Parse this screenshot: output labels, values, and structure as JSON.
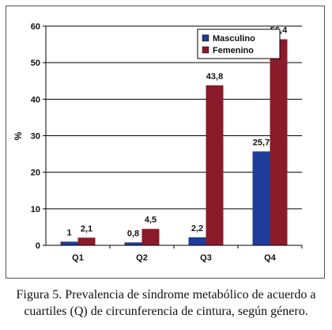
{
  "chart_data": {
    "type": "bar",
    "categories": [
      "Q1",
      "Q2",
      "Q3",
      "Q4"
    ],
    "series": [
      {
        "name": "Masculino",
        "values": [
          1,
          0.8,
          2.2,
          25.7
        ],
        "labels": [
          "1",
          "0,8",
          "2,2",
          "25,7"
        ],
        "color": "#1f3c9a"
      },
      {
        "name": "Femenino",
        "values": [
          2.1,
          4.5,
          43.8,
          56.4
        ],
        "labels": [
          "2,1",
          "4,5",
          "43,8",
          "56,4"
        ],
        "color": "#8b1a2b"
      }
    ],
    "ylabel": "%",
    "ylim": [
      0,
      60
    ],
    "yticks": [
      0,
      10,
      20,
      30,
      40,
      50,
      60
    ],
    "grid": true,
    "legend": "top-right"
  },
  "caption": {
    "line1": "Figura 5. Prevalencia de síndrome metabólico de acuerdo a",
    "line2": "cuartiles (Q) de circunferencia de cintura, según género."
  }
}
